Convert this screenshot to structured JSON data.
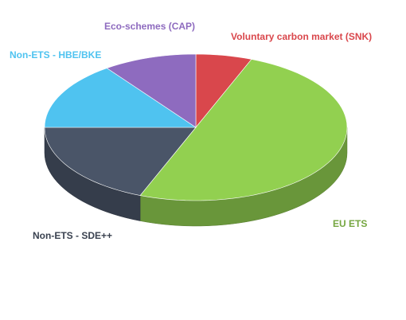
{
  "chart_data": {
    "type": "pie",
    "categories": [
      "Voluntary carbon market (SNK)",
      "EU ETS",
      "Non-ETS - SDE++",
      "Non-ETS - HBE/BKE",
      "Eco-schemes (CAP)"
    ],
    "values": [
      6,
      50,
      19,
      15,
      10
    ],
    "colors": [
      "#d9474c",
      "#92d050",
      "#4a5568",
      "#4fc3f0",
      "#8e6bbf"
    ]
  }
}
